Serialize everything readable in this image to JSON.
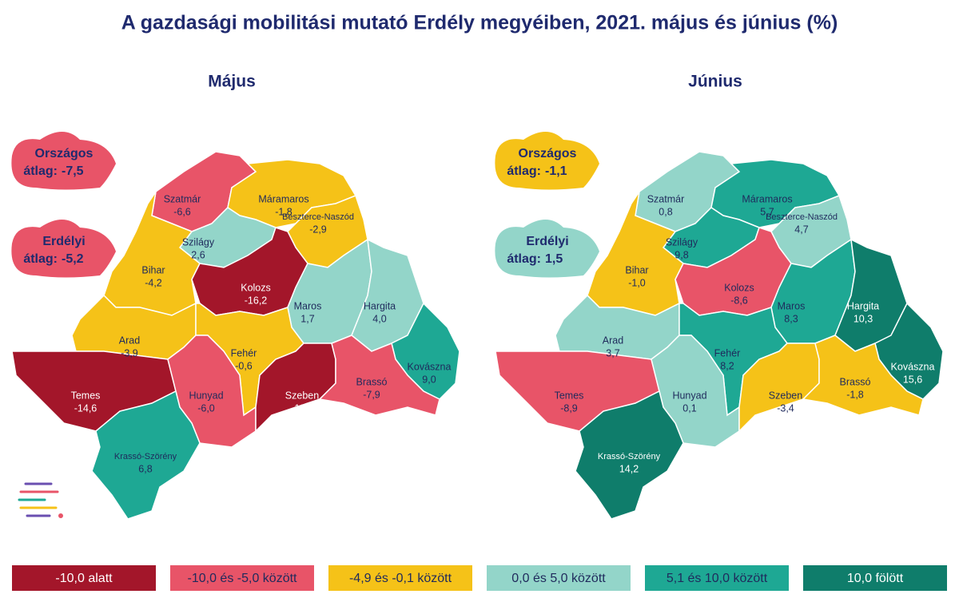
{
  "title": "A gazdasági mobilitási mutató Erdély megyéiben, 2021. május és június (%)",
  "counties": [
    "Szatmár",
    "Máramaros",
    "Beszterce-Naszód",
    "Szilágy",
    "Bihar",
    "Kolozs",
    "Maros",
    "Hargita",
    "Arad",
    "Fehér",
    "Kovászna",
    "Temes",
    "Hunyad",
    "Szeben",
    "Brassó",
    "Krassó-Szörény"
  ],
  "maps": [
    {
      "title": "Május",
      "values": [
        {
          "value": -6.6,
          "label": "-6,6"
        },
        {
          "value": -1.8,
          "label": "-1,8"
        },
        {
          "value": -2.9,
          "label": "-2,9"
        },
        {
          "value": 2.6,
          "label": "2,6"
        },
        {
          "value": -4.2,
          "label": "-4,2"
        },
        {
          "value": -16.2,
          "label": "-16,2"
        },
        {
          "value": 1.7,
          "label": "1,7"
        },
        {
          "value": 4.0,
          "label": "4,0"
        },
        {
          "value": -3.9,
          "label": "-3,9"
        },
        {
          "value": -0.6,
          "label": "-0,6"
        },
        {
          "value": 9.0,
          "label": "9,0"
        },
        {
          "value": -14.6,
          "label": "-14,6"
        },
        {
          "value": -6.0,
          "label": "-6,0"
        },
        {
          "value": -11.6,
          "label": "-11,6"
        },
        {
          "value": -7.9,
          "label": "-7,9"
        },
        {
          "value": 6.8,
          "label": "6,8"
        }
      ],
      "classes": [
        1,
        2,
        2,
        3,
        2,
        0,
        3,
        3,
        2,
        2,
        4,
        0,
        1,
        0,
        1,
        4
      ],
      "averages": [
        {
          "name": "Országos",
          "text": "átlag:",
          "value": {
            "value": -7.5,
            "label": "-7,5"
          },
          "class": 1
        },
        {
          "name": "Erdélyi",
          "text": "átlag:",
          "value": {
            "value": -5.2,
            "label": "-5,2"
          },
          "class": 1
        }
      ]
    },
    {
      "title": "Június",
      "values": [
        {
          "value": 0.8,
          "label": "0,8"
        },
        {
          "value": 5.7,
          "label": "5,7"
        },
        {
          "value": 4.7,
          "label": "4,7"
        },
        {
          "value": 9.8,
          "label": "9,8"
        },
        {
          "value": -1.0,
          "label": "-1,0"
        },
        {
          "value": -8.6,
          "label": "-8,6"
        },
        {
          "value": 8.3,
          "label": "8,3"
        },
        {
          "value": 10.3,
          "label": "10,3"
        },
        {
          "value": 3.7,
          "label": "3,7"
        },
        {
          "value": 8.2,
          "label": "8,2"
        },
        {
          "value": 15.6,
          "label": "15,6"
        },
        {
          "value": -8.9,
          "label": "-8,9"
        },
        {
          "value": 0.1,
          "label": "0,1"
        },
        {
          "value": -3.4,
          "label": "-3,4"
        },
        {
          "value": -1.8,
          "label": "-1,8"
        },
        {
          "value": 14.2,
          "label": "14,2"
        }
      ],
      "classes": [
        3,
        4,
        3,
        4,
        2,
        1,
        4,
        5,
        3,
        4,
        5,
        1,
        3,
        2,
        2,
        5
      ],
      "averages": [
        {
          "name": "Országos",
          "text": "átlag:",
          "value": {
            "value": -1.1,
            "label": "-1,1"
          },
          "class": 2
        },
        {
          "name": "Erdélyi",
          "text": "átlag:",
          "value": {
            "value": 1.5,
            "label": "1,5"
          },
          "class": 3
        }
      ]
    }
  ],
  "legend": [
    {
      "label": "-10,0 alatt",
      "color": "#a3162a",
      "text_color": "#ffffff"
    },
    {
      "label": "-10,0 és -5,0 között",
      "color": "#e85468",
      "text_color": "#1f2a5c"
    },
    {
      "label": "-4,9 és -0,1 között",
      "color": "#f5c218",
      "text_color": "#1f2a5c"
    },
    {
      "label": "0,0 és 5,0 között",
      "color": "#93d5c9",
      "text_color": "#1f2a5c"
    },
    {
      "label": "5,1 és 10,0 között",
      "color": "#1ea894",
      "text_color": "#1f2a5c"
    },
    {
      "label": "10,0 fölött",
      "color": "#0f7d6b",
      "text_color": "#ffffff"
    }
  ]
}
